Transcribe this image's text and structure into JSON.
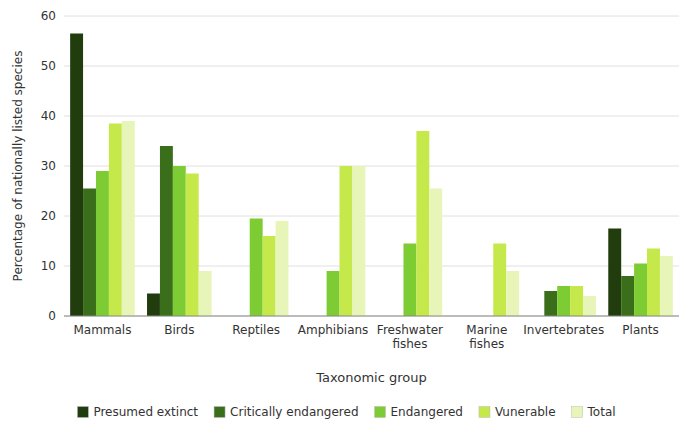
{
  "chart_data": {
    "type": "bar",
    "xlabel": "Taxonomic group",
    "ylabel": "Percentage of nationally listed species",
    "categories": [
      "Mammals",
      "Birds",
      "Reptiles",
      "Amphibians",
      "Freshwater\nfishes",
      "Marine\nfishes",
      "Invertebrates",
      "Plants"
    ],
    "series": [
      {
        "name": "Presumed extinct",
        "color": "#213d0e",
        "values": [
          56.5,
          4.5,
          0,
          0,
          0,
          0,
          0,
          17.5
        ]
      },
      {
        "name": "Critically endangered",
        "color": "#3a6e1a",
        "values": [
          25.5,
          34,
          0,
          0,
          0,
          0,
          5,
          8
        ]
      },
      {
        "name": "Endangered",
        "color": "#7dcc33",
        "values": [
          29,
          30,
          19.5,
          9,
          14.5,
          0,
          6,
          10.5
        ]
      },
      {
        "name": "Vunerable",
        "color": "#c5e84a",
        "values": [
          38.5,
          28.5,
          16,
          30,
          37,
          14.5,
          6,
          13.5
        ]
      },
      {
        "name": "Total",
        "color": "#e8f5b8",
        "values": [
          39,
          9,
          19,
          30,
          25.5,
          9,
          4,
          12
        ]
      }
    ],
    "ylim": [
      0,
      60
    ],
    "yticks": [
      0,
      10,
      20,
      30,
      40,
      50,
      60
    ],
    "grid": true,
    "legend": "bottom"
  }
}
